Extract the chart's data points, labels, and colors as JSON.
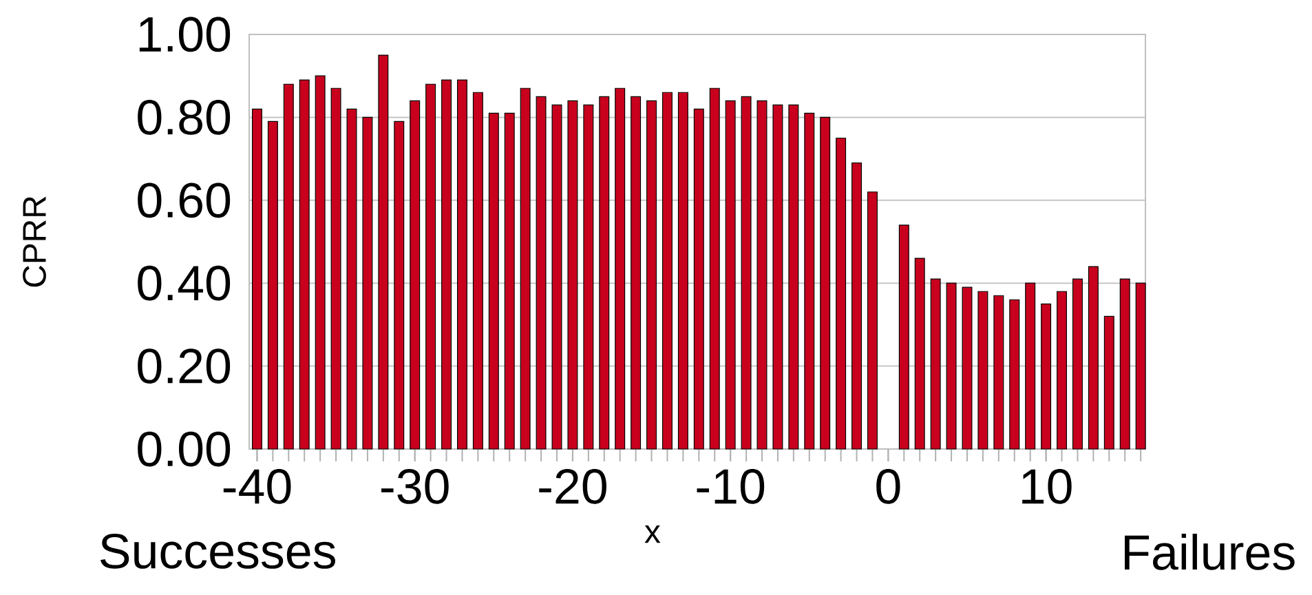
{
  "chart_data": {
    "type": "bar",
    "xlabel": "x",
    "ylabel": "CPRR",
    "color": "#c8001e",
    "x": [
      -40,
      -39,
      -38,
      -37,
      -36,
      -35,
      -34,
      -33,
      -32,
      -31,
      -30,
      -29,
      -28,
      -27,
      -26,
      -25,
      -24,
      -23,
      -22,
      -21,
      -20,
      -19,
      -18,
      -17,
      -16,
      -15,
      -14,
      -13,
      -12,
      -11,
      -10,
      -9,
      -8,
      -7,
      -6,
      -5,
      -4,
      -3,
      -2,
      -1,
      0,
      1,
      2,
      3,
      4,
      5,
      6,
      7,
      8,
      9,
      10,
      11,
      12,
      13,
      14,
      15,
      16
    ],
    "values": [
      0.82,
      0.79,
      0.88,
      0.89,
      0.9,
      0.87,
      0.82,
      0.8,
      0.95,
      0.79,
      0.84,
      0.88,
      0.89,
      0.89,
      0.86,
      0.81,
      0.81,
      0.87,
      0.85,
      0.83,
      0.84,
      0.83,
      0.85,
      0.87,
      0.85,
      0.84,
      0.86,
      0.86,
      0.82,
      0.87,
      0.84,
      0.85,
      0.84,
      0.83,
      0.83,
      0.81,
      0.8,
      0.75,
      0.69,
      0.62,
      null,
      0.54,
      0.46,
      0.41,
      0.4,
      0.39,
      0.38,
      0.37,
      0.36,
      0.4,
      0.35,
      0.38,
      0.41,
      0.44,
      0.32,
      0.41,
      0.4
    ],
    "xlim": [
      -40.5,
      16.3
    ],
    "xticks": [
      -40,
      -30,
      -20,
      -10,
      0,
      10
    ],
    "ylim": [
      0,
      1
    ],
    "yticks": [
      {
        "value": 0,
        "label": "0.00"
      },
      {
        "value": 0.2,
        "label": "0.20"
      },
      {
        "value": 0.4,
        "label": "0.40"
      },
      {
        "value": 0.6,
        "label": "0.60"
      },
      {
        "value": 0.8,
        "label": "0.80"
      },
      {
        "value": 1,
        "label": "1.00"
      }
    ],
    "grid": "y",
    "annotations": [
      "Successes",
      "Failures"
    ]
  }
}
